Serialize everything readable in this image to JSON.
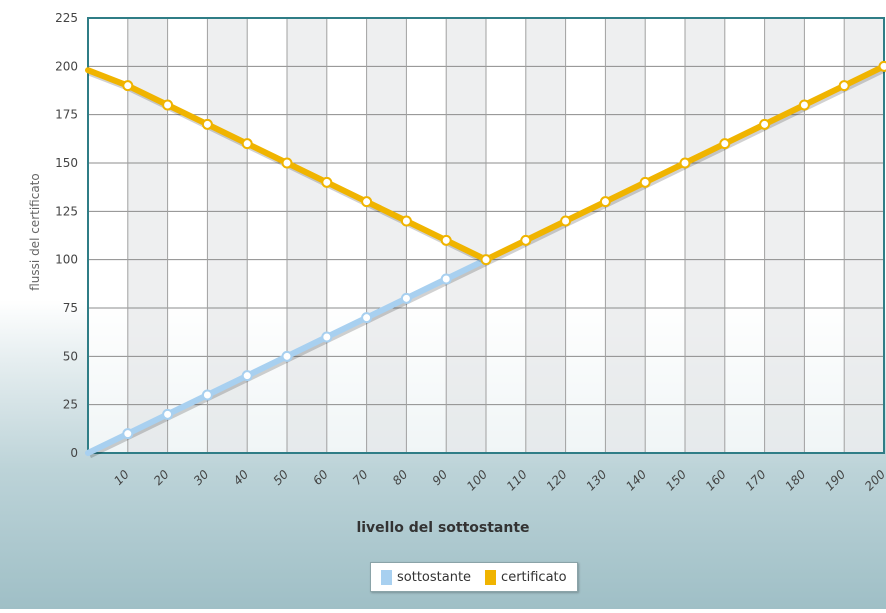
{
  "chart_data": {
    "type": "line",
    "xlabel": "livello del sottostante",
    "ylabel": "flussi del certificato",
    "ylim": [
      0,
      225
    ],
    "yticks": [
      0,
      25,
      50,
      75,
      100,
      125,
      150,
      175,
      200,
      225
    ],
    "x": [
      0,
      10,
      20,
      30,
      40,
      50,
      60,
      70,
      80,
      90,
      100,
      110,
      120,
      130,
      140,
      150,
      160,
      170,
      180,
      190,
      200
    ],
    "xtick_labels": [
      "10",
      "20",
      "30",
      "40",
      "50",
      "60",
      "70",
      "80",
      "90",
      "100",
      "110",
      "120",
      "130",
      "140",
      "150",
      "160",
      "170",
      "180",
      "190",
      "200"
    ],
    "grid": true,
    "legend_position": "bottom-center",
    "series": [
      {
        "name": "sottostante",
        "color": "#a8d0f0",
        "x": [
          0,
          10,
          20,
          30,
          40,
          50,
          60,
          70,
          80,
          90,
          100
        ],
        "values": [
          0,
          10,
          20,
          30,
          40,
          50,
          60,
          70,
          80,
          90,
          100
        ]
      },
      {
        "name": "certificato",
        "color": "#f0b400",
        "x": [
          0,
          10,
          20,
          30,
          40,
          50,
          60,
          70,
          80,
          90,
          100,
          110,
          120,
          130,
          140,
          150,
          160,
          170,
          180,
          190,
          200
        ],
        "values": [
          198,
          190,
          180,
          170,
          160,
          150,
          140,
          130,
          120,
          110,
          100,
          110,
          120,
          130,
          140,
          150,
          160,
          170,
          180,
          190,
          200
        ]
      }
    ]
  }
}
